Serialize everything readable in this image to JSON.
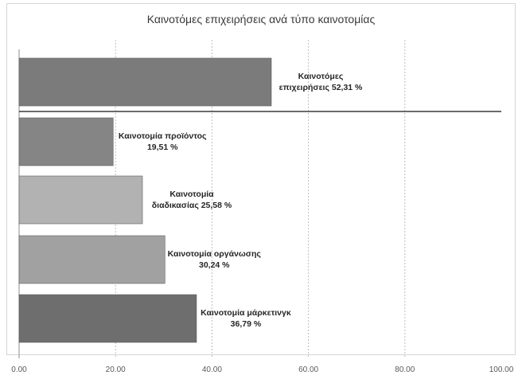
{
  "chart_data": {
    "type": "bar",
    "orientation": "horizontal",
    "title": "Καινοτόμες επιχειρήσεις ανά τύπο καινοτομίας",
    "xlim": [
      0,
      100
    ],
    "xticks": [
      "0.00",
      "20.00",
      "40.00",
      "60.00",
      "80.00",
      "100.00"
    ],
    "grid": "vertical",
    "separator_after_first_bar": true,
    "bars": [
      {
        "label_lines": [
          "Καινοτόμες",
          "επιχειρήσεις 52,31 %"
        ],
        "value": 52.31,
        "color": "#7b7b7b"
      },
      {
        "label_lines": [
          "Καινοτομία προϊόντος",
          "19,51 %"
        ],
        "value": 19.51,
        "color": "#858585"
      },
      {
        "label_lines": [
          "Καινοτομία",
          "διαδικασίας 25,58 %"
        ],
        "value": 25.58,
        "color": "#b2b2b2"
      },
      {
        "label_lines": [
          "Καινοτομία οργάνωσης",
          "30,24 %"
        ],
        "value": 30.24,
        "color": "#a1a1a1"
      },
      {
        "label_lines": [
          "Καινοτομία μάρκετινγκ",
          "36,79 %"
        ],
        "value": 36.79,
        "color": "#6e6e6e"
      }
    ]
  }
}
